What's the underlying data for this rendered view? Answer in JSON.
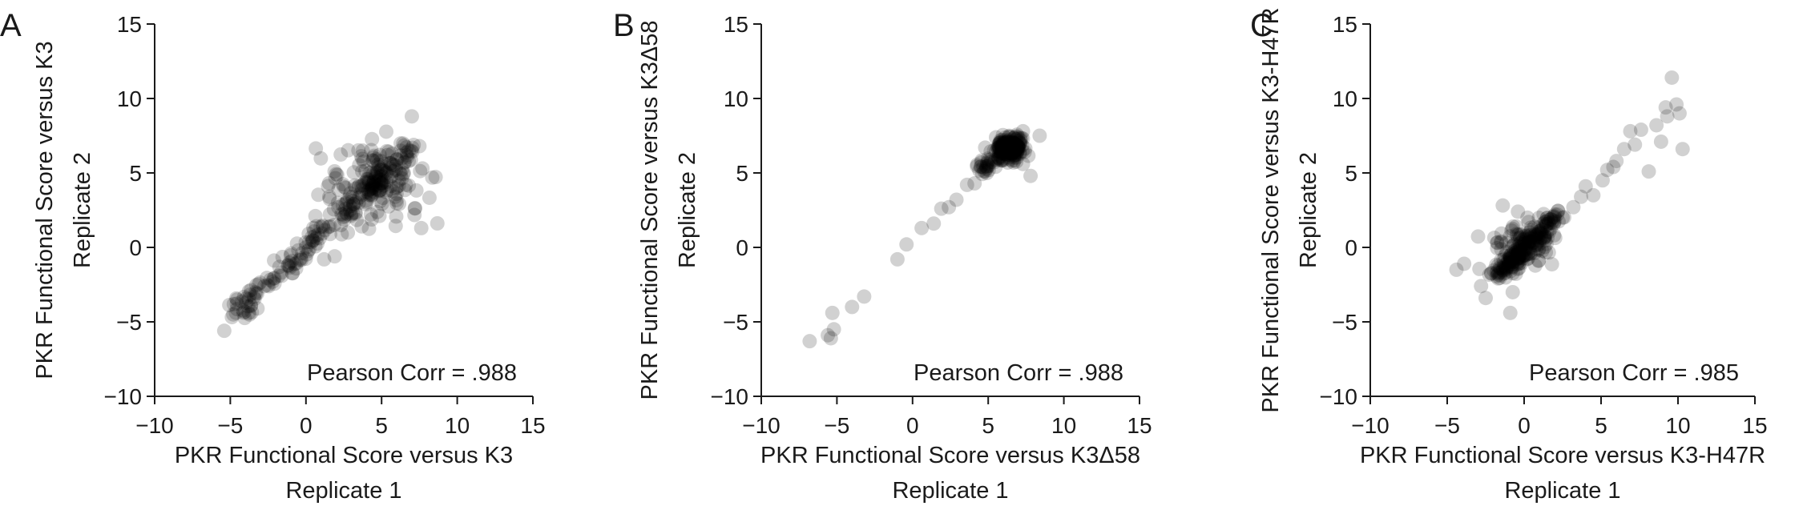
{
  "chart_data": [
    {
      "type": "scatter",
      "panel_label": "A",
      "xlabel": [
        "PKR Functional Score versus K3",
        "Replicate 1"
      ],
      "ylabel": [
        "PKR Functional Score versus K3",
        "Replicate 2"
      ],
      "xlim": [
        -10,
        15
      ],
      "ylim": [
        -10,
        15
      ],
      "xticks": [
        -10,
        -5,
        0,
        5,
        10,
        15
      ],
      "yticks": [
        -10,
        -5,
        0,
        5,
        10,
        15
      ],
      "annotation": "Pearson Corr = .988",
      "point_color": "#000000",
      "point_opacity": 0.18,
      "cluster": {
        "from": [
          -4.6,
          -4.4
        ],
        "to": [
          7.3,
          7.0
        ],
        "n": 320,
        "spread": 0.35,
        "center": [
          4.6,
          4.4
        ],
        "center_weight": 0.45,
        "center_spread": [
          1.5,
          1.4
        ]
      },
      "outliers": [
        [
          -5.4,
          -5.6
        ],
        [
          -4.8,
          -4.5
        ],
        [
          -3.2,
          -4.1
        ],
        [
          -2.2,
          -2.3
        ],
        [
          -1.8,
          -1.9
        ],
        [
          -0.5,
          -0.2
        ],
        [
          0.0,
          0.0
        ],
        [
          1.2,
          -0.8
        ],
        [
          1.9,
          -0.6
        ],
        [
          1.6,
          0.9
        ],
        [
          2.3,
          1.5
        ],
        [
          3.1,
          2.3
        ],
        [
          5.9,
          3.4
        ],
        [
          6.6,
          4.2
        ],
        [
          7.0,
          8.8
        ],
        [
          7.7,
          5.3
        ],
        [
          7.5,
          6.8
        ],
        [
          6.2,
          5.0
        ],
        [
          4.9,
          3.1
        ],
        [
          6.8,
          6.5
        ]
      ]
    },
    {
      "type": "scatter",
      "panel_label": "B",
      "xlabel": [
        "PKR Functional Score versus K3Δ58",
        "Replicate 1"
      ],
      "ylabel": [
        "PKR Functional Score versus K3Δ58",
        "Replicate 2"
      ],
      "xlim": [
        -10,
        15
      ],
      "ylim": [
        -10,
        15
      ],
      "xticks": [
        -10,
        -5,
        0,
        5,
        10,
        15
      ],
      "yticks": [
        -10,
        -5,
        0,
        5,
        10,
        15
      ],
      "annotation": "Pearson Corr = .988",
      "point_color": "#000000",
      "point_opacity": 0.18,
      "cluster": {
        "from": [
          4.6,
          5.2
        ],
        "to": [
          7.0,
          7.4
        ],
        "n": 240,
        "spread": 0.3,
        "center": [
          6.4,
          6.6
        ],
        "center_weight": 0.75,
        "center_spread": [
          0.45,
          0.4
        ]
      },
      "outliers": [
        [
          -6.8,
          -6.3
        ],
        [
          -5.6,
          -5.9
        ],
        [
          -5.4,
          -6.1
        ],
        [
          -5.2,
          -5.5
        ],
        [
          -5.3,
          -4.4
        ],
        [
          -4.0,
          -4.0
        ],
        [
          -3.2,
          -3.3
        ],
        [
          -1.0,
          -0.8
        ],
        [
          -0.4,
          0.2
        ],
        [
          0.6,
          1.3
        ],
        [
          1.4,
          1.6
        ],
        [
          1.9,
          2.6
        ],
        [
          2.4,
          2.7
        ],
        [
          2.9,
          3.2
        ],
        [
          3.6,
          4.2
        ],
        [
          4.1,
          4.3
        ],
        [
          4.8,
          5.1
        ],
        [
          7.8,
          4.8
        ],
        [
          8.4,
          7.5
        ],
        [
          7.3,
          5.6
        ],
        [
          4.8,
          6.7
        ],
        [
          5.2,
          5.9
        ]
      ]
    },
    {
      "type": "scatter",
      "panel_label": "C",
      "xlabel": [
        "PKR Functional Score versus K3-H47R",
        "Replicate 1"
      ],
      "ylabel": [
        "PKR Functional Score versus K3-H47R",
        "Replicate 2"
      ],
      "xlim": [
        -10,
        15
      ],
      "ylim": [
        -10,
        15
      ],
      "xticks": [
        -10,
        -5,
        0,
        5,
        10,
        15
      ],
      "yticks": [
        -10,
        -5,
        0,
        5,
        10,
        15
      ],
      "annotation": "Pearson Corr = .985",
      "point_color": "#000000",
      "point_opacity": 0.18,
      "cluster": {
        "from": [
          -2.0,
          -2.0
        ],
        "to": [
          2.4,
          2.2
        ],
        "n": 260,
        "spread": 0.25,
        "center": [
          0.0,
          0.0
        ],
        "center_weight": 0.5,
        "center_spread": [
          0.9,
          0.8
        ]
      },
      "outliers": [
        [
          -4.4,
          -1.5
        ],
        [
          -3.9,
          -1.1
        ],
        [
          -2.8,
          -2.6
        ],
        [
          -2.5,
          -3.4
        ],
        [
          -0.9,
          -4.4
        ],
        [
          -0.4,
          2.4
        ],
        [
          2.5,
          2.0
        ],
        [
          3.2,
          2.7
        ],
        [
          3.7,
          3.4
        ],
        [
          4.5,
          3.5
        ],
        [
          5.1,
          4.5
        ],
        [
          5.4,
          5.2
        ],
        [
          6.0,
          5.8
        ],
        [
          6.5,
          6.6
        ],
        [
          7.2,
          6.9
        ],
        [
          7.6,
          7.9
        ],
        [
          8.1,
          5.1
        ],
        [
          8.6,
          8.2
        ],
        [
          8.9,
          7.1
        ],
        [
          9.3,
          8.8
        ],
        [
          9.6,
          11.4
        ],
        [
          9.9,
          9.6
        ],
        [
          10.1,
          9.0
        ],
        [
          10.3,
          6.6
        ],
        [
          6.9,
          7.8
        ],
        [
          9.2,
          9.4
        ],
        [
          4.0,
          4.1
        ],
        [
          5.8,
          5.4
        ]
      ]
    }
  ]
}
